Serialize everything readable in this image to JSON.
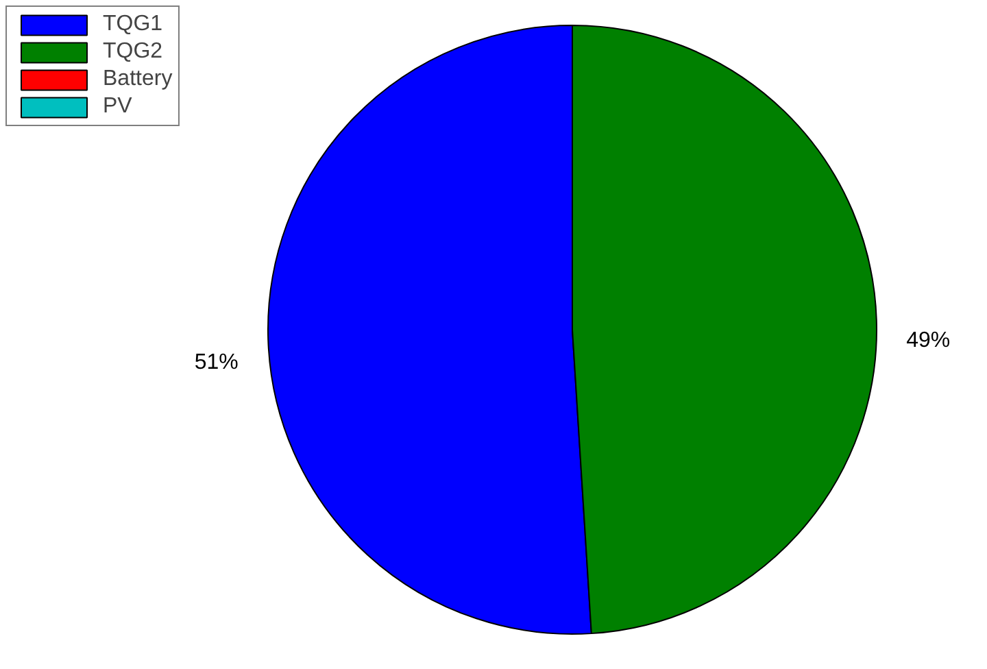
{
  "chart_data": {
    "type": "pie",
    "categories": [
      "TQG1",
      "TQG2",
      "Battery",
      "PV"
    ],
    "values": [
      51,
      49,
      0,
      0
    ],
    "colors": [
      "#0000ff",
      "#008000",
      "#ff0000",
      "#00bfbf"
    ],
    "value_labels": [
      "51%",
      "49%",
      null,
      null
    ],
    "legend": "top left"
  }
}
